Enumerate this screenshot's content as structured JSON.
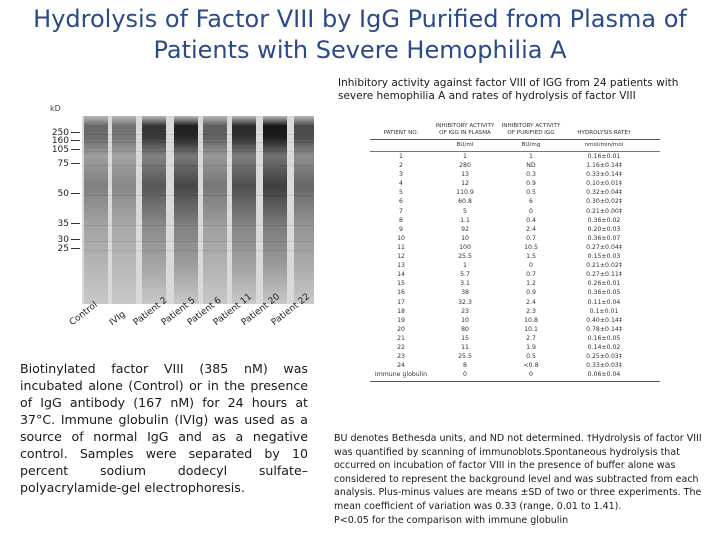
{
  "title": {
    "line1": "Hydrolysis of Factor VIII by IgG Purified from Plasma of",
    "line2": "Patients with Severe Hemophilia A"
  },
  "gel": {
    "unit_label": "kD",
    "markers": [
      "250",
      "160",
      "105",
      "75",
      "50",
      "35",
      "30",
      "25"
    ],
    "lanes": [
      "Control",
      "IVIg",
      "Patient 2",
      "Patient 5",
      "Patient 6",
      "Patient 11",
      "Patient 20",
      "Patient 22"
    ]
  },
  "caption_left": "Biotinylated factor VIII (385 nM) was incubated alone (Control) or in the presence of IgG antibody (167 nM) for 24 hours at 37°C. Immune globulin (IVIg) was used as a source of normal IgG and as a negative control. Samples were separated by 10 percent sodium dodecyl sulfate–polyacrylamide-gel electrophoresis.",
  "table": {
    "heading": "Inhibitory activity against factor VIII of IGG from 24 patients with severe hemophilia A and rates of hydrolysis of factor VIII",
    "columns": [
      "Patient No.",
      "Inhibitory Activity of IgG in Plasma",
      "Inhibitory Activity of Purified IgG",
      "Hydrolysis Rate†"
    ],
    "units": [
      "",
      "BU/ml",
      "BU/mg",
      "nmol/min/mol"
    ],
    "rows": [
      [
        "1",
        "1",
        "1",
        "0.16±0.01"
      ],
      [
        "2",
        "280",
        "ND",
        "1.16±0.14‡"
      ],
      [
        "3",
        "13",
        "0.3",
        "0.33±0.14‡"
      ],
      [
        "4",
        "12",
        "0.9",
        "0.10±0.01‡"
      ],
      [
        "5",
        "110.9",
        "0.5",
        "0.32±0.04‡"
      ],
      [
        "6",
        "60.8",
        "6",
        "0.30±0.02‡"
      ],
      [
        "7",
        "5",
        "0",
        "0.21±0.00‡"
      ],
      [
        "8",
        "1.1",
        "0.4",
        "0.36±0.02"
      ],
      [
        "9",
        "92",
        "2.4",
        "0.20±0.03"
      ],
      [
        "10",
        "10",
        "0.7",
        "0.36±0.07"
      ],
      [
        "11",
        "100",
        "10.5",
        "0.27±0.04‡"
      ],
      [
        "12",
        "25.5",
        "1.5",
        "0.15±0.03"
      ],
      [
        "13",
        "1",
        "0",
        "0.21±0.02‡"
      ],
      [
        "14",
        "5.7",
        "0.7",
        "0.27±0.11‡"
      ],
      [
        "15",
        "3.1",
        "1.2",
        "0.26±0.01"
      ],
      [
        "16",
        "38",
        "0.9",
        "0.36±0.05"
      ],
      [
        "17",
        "32.3",
        "2.4",
        "0.11±0.04"
      ],
      [
        "18",
        "23",
        "2.3",
        "0.1±0.01"
      ],
      [
        "19",
        "10",
        "10.8",
        "0.40±0.14‡"
      ],
      [
        "20",
        "80",
        "10.1",
        "0.78±0.14‡"
      ],
      [
        "21",
        "15",
        "2.7",
        "0.16±0.05"
      ],
      [
        "22",
        "11",
        "1.9",
        "0.14±0.02"
      ],
      [
        "23",
        "25.5",
        "0.5",
        "0.25±0.03‡"
      ],
      [
        "24",
        "8",
        "<0.8",
        "0.33±0.03‡"
      ],
      [
        "Immune globulin",
        "0",
        "0",
        "0.06±0.04"
      ]
    ]
  },
  "caption_right": "BU denotes Bethesda units, and ND not determined. †Hydrolysis of factor VIII was quantified by scanning of immunoblots.Spontaneous hydrolysis that occurred on incubation of factor VIII in the presence of buffer alone was considered to represent the background level and was subtracted from each analysis. Plus-minus values are means ±SD of two or three experiments. The mean coefficient of variation was 0.33 (range, 0.01 to 1.41).",
  "caption_right_footnote": "P<0.05 for the comparison with immune globulin"
}
